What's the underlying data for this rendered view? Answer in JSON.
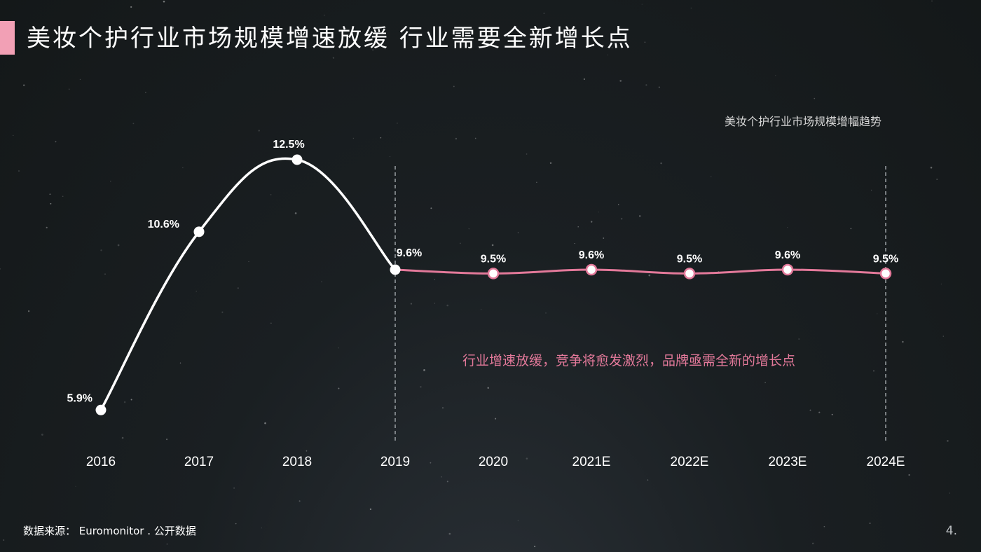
{
  "page": {
    "title": "美妆个护行业市场规模增速放缓  行业需要全新增长点",
    "accent_color": "#f2a0b5",
    "footer_source": "数据来源： Euromonitor . 公开数据",
    "page_number": "4."
  },
  "chart_data": {
    "type": "line",
    "title": "美妆个护行业市场规模增幅趋势",
    "categories": [
      "2016",
      "2017",
      "2018",
      "2019",
      "2020",
      "2021E",
      "2022E",
      "2023E",
      "2024E"
    ],
    "series": [
      {
        "values": [
          5.9,
          10.6,
          12.5,
          9.6,
          9.5,
          9.6,
          9.5,
          9.6,
          9.5
        ],
        "labels": [
          "5.9%",
          "10.6%",
          "12.5%",
          "9.6%",
          "9.5%",
          "9.6%",
          "9.5%",
          "9.6%",
          "9.5%"
        ]
      }
    ],
    "historical_color": "#ffffff",
    "forecast_color": "#e3799a",
    "forecast_start_index": 3,
    "annotation": "行业增速放缓，竞争将愈发激烈，品牌亟需全新的增长点",
    "annotation_color": "#e3799a",
    "xlabel": "",
    "ylabel": "",
    "grid": false,
    "legend": "none"
  }
}
